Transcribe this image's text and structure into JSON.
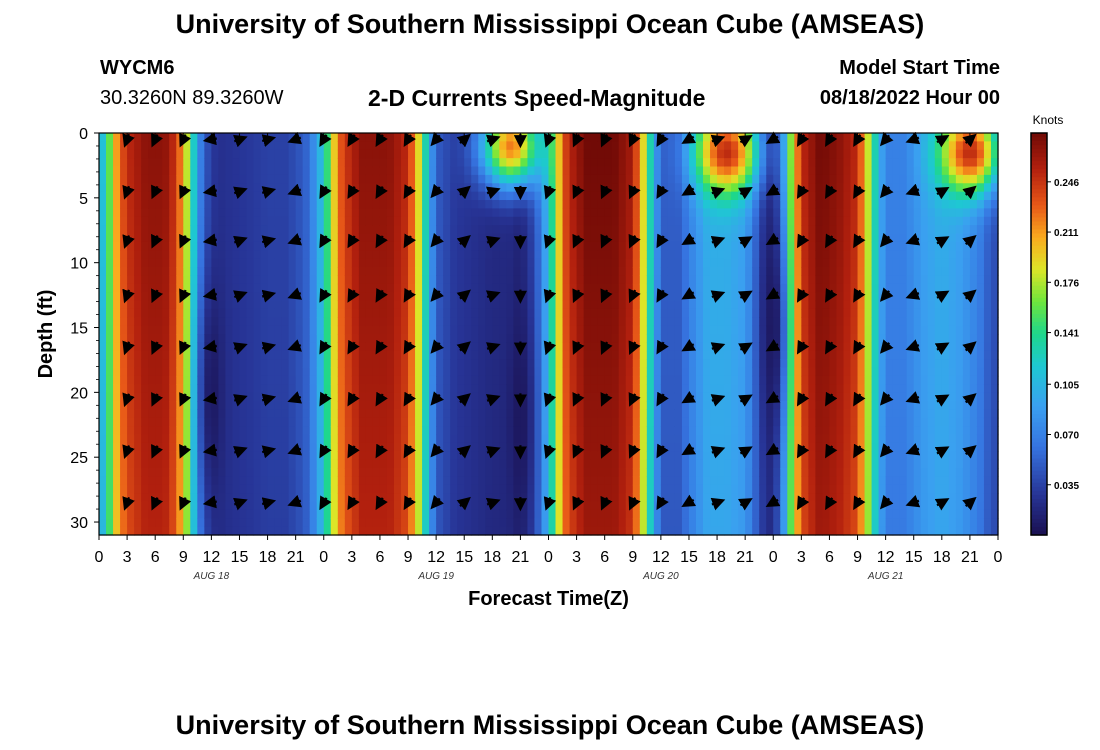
{
  "page": {
    "title": "University of Southern Mississippi Ocean Cube (AMSEAS)",
    "title_bottom": "University of Southern Mississippi Ocean Cube (AMSEAS)",
    "station_id": "WYCM6",
    "station_coords": "30.3260N  89.3260W",
    "subtitle": "2-D Currents Speed-Magnitude",
    "model_start_label": "Model Start Time",
    "model_start_value": "08/18/2022 Hour 00"
  },
  "chart_data": {
    "type": "heatmap",
    "title": "2-D Currents Speed-Magnitude",
    "xlabel": "Forecast Time(Z)",
    "ylabel": "Depth (ft)",
    "x_range_hours": [
      0,
      96
    ],
    "y_range_ft": [
      0,
      31
    ],
    "x_ticks": [
      {
        "h": 0,
        "label": "0"
      },
      {
        "h": 3,
        "label": "3"
      },
      {
        "h": 6,
        "label": "6"
      },
      {
        "h": 9,
        "label": "9"
      },
      {
        "h": 12,
        "label": "12"
      },
      {
        "h": 15,
        "label": "15"
      },
      {
        "h": 18,
        "label": "18"
      },
      {
        "h": 21,
        "label": "21"
      },
      {
        "h": 24,
        "label": "0"
      },
      {
        "h": 27,
        "label": "3"
      },
      {
        "h": 30,
        "label": "6"
      },
      {
        "h": 33,
        "label": "9"
      },
      {
        "h": 36,
        "label": "12"
      },
      {
        "h": 39,
        "label": "15"
      },
      {
        "h": 42,
        "label": "18"
      },
      {
        "h": 45,
        "label": "21"
      },
      {
        "h": 48,
        "label": "0"
      },
      {
        "h": 51,
        "label": "3"
      },
      {
        "h": 54,
        "label": "6"
      },
      {
        "h": 57,
        "label": "9"
      },
      {
        "h": 60,
        "label": "12"
      },
      {
        "h": 63,
        "label": "15"
      },
      {
        "h": 66,
        "label": "18"
      },
      {
        "h": 69,
        "label": "21"
      },
      {
        "h": 72,
        "label": "0"
      },
      {
        "h": 75,
        "label": "3"
      },
      {
        "h": 78,
        "label": "6"
      },
      {
        "h": 81,
        "label": "9"
      },
      {
        "h": 84,
        "label": "12"
      },
      {
        "h": 87,
        "label": "15"
      },
      {
        "h": 90,
        "label": "18"
      },
      {
        "h": 93,
        "label": "21"
      },
      {
        "h": 96,
        "label": "0"
      }
    ],
    "y_ticks": [
      {
        "ft": 0,
        "label": "0"
      },
      {
        "ft": 5,
        "label": "5"
      },
      {
        "ft": 10,
        "label": "10"
      },
      {
        "ft": 15,
        "label": "15"
      },
      {
        "ft": 20,
        "label": "20"
      },
      {
        "ft": 25,
        "label": "25"
      },
      {
        "ft": 30,
        "label": "30"
      }
    ],
    "date_labels": [
      {
        "h": 12,
        "label": "AUG 18"
      },
      {
        "h": 36,
        "label": "AUG 19"
      },
      {
        "h": 60,
        "label": "AUG 20"
      },
      {
        "h": 84,
        "label": "AUG 21"
      }
    ],
    "colorbar": {
      "unit": "Knots",
      "min": 0,
      "max": 0.28,
      "ticks": [
        0.246,
        0.211,
        0.176,
        0.141,
        0.105,
        0.07,
        0.035
      ],
      "tick_labels": [
        "0.246",
        "0.211",
        "0.176",
        "0.141",
        "0.105",
        "0.070",
        "0.035"
      ]
    },
    "speed_profile_by_hour": [
      [
        0,
        0.09
      ],
      [
        1,
        0.15
      ],
      [
        2,
        0.22
      ],
      [
        3,
        0.25
      ],
      [
        5,
        0.27
      ],
      [
        7,
        0.27
      ],
      [
        8,
        0.25
      ],
      [
        9,
        0.21
      ],
      [
        10,
        0.13
      ],
      [
        11,
        0.06
      ],
      [
        12,
        0.03
      ],
      [
        13,
        0.025
      ],
      [
        16,
        0.03
      ],
      [
        18,
        0.035
      ],
      [
        20,
        0.035
      ],
      [
        22,
        0.05
      ],
      [
        23,
        0.08
      ],
      [
        24,
        0.12
      ],
      [
        25,
        0.19
      ],
      [
        26,
        0.24
      ],
      [
        28,
        0.27
      ],
      [
        31,
        0.27
      ],
      [
        33,
        0.25
      ],
      [
        34,
        0.2
      ],
      [
        35,
        0.12
      ],
      [
        36,
        0.05
      ],
      [
        38,
        0.03
      ],
      [
        42,
        0.02
      ],
      [
        44,
        0.02
      ],
      [
        45,
        0.015
      ],
      [
        46,
        0.03
      ],
      [
        47,
        0.06
      ],
      [
        48,
        0.11
      ],
      [
        49,
        0.19
      ],
      [
        50,
        0.25
      ],
      [
        52,
        0.28
      ],
      [
        55,
        0.28
      ],
      [
        57,
        0.26
      ],
      [
        58,
        0.2
      ],
      [
        59,
        0.12
      ],
      [
        60,
        0.05
      ],
      [
        62,
        0.05
      ],
      [
        63,
        0.07
      ],
      [
        65,
        0.1
      ],
      [
        67,
        0.1
      ],
      [
        69,
        0.09
      ],
      [
        70,
        0.06
      ],
      [
        71,
        0.03
      ],
      [
        72,
        0.02
      ],
      [
        73,
        0.08
      ],
      [
        74,
        0.18
      ],
      [
        75,
        0.25
      ],
      [
        77,
        0.28
      ],
      [
        79,
        0.27
      ],
      [
        81,
        0.25
      ],
      [
        82,
        0.19
      ],
      [
        83,
        0.12
      ],
      [
        84,
        0.07
      ],
      [
        86,
        0.07
      ],
      [
        88,
        0.09
      ],
      [
        90,
        0.1
      ],
      [
        92,
        0.09
      ],
      [
        94,
        0.07
      ],
      [
        95,
        0.05
      ],
      [
        96,
        0.04
      ]
    ],
    "surface_hotspots": [
      {
        "h": 44,
        "depth_ft": 1,
        "speed": 0.22
      },
      {
        "h": 67,
        "depth_ft": 1.5,
        "speed": 0.25
      },
      {
        "h": 93,
        "depth_ft": 1.5,
        "speed": 0.25
      }
    ],
    "deep_minima": [
      {
        "h": 12,
        "depth_ft": 20,
        "speed": 0.005
      },
      {
        "h": 45,
        "depth_ft": 22,
        "speed": 0.005
      },
      {
        "h": 72,
        "depth_ft": 15,
        "speed": 0.005
      }
    ],
    "arrow_depths_ft": [
      0.5,
      4.5,
      8.3,
      12.5,
      16.5,
      20.5,
      24.5,
      28.5
    ],
    "arrow_hours": [
      3,
      6,
      9,
      12,
      15,
      18,
      21,
      24,
      27,
      30,
      33,
      36,
      39,
      42,
      45,
      48,
      51,
      54,
      57,
      60,
      63,
      66,
      69,
      72,
      75,
      78,
      81,
      84,
      87,
      90,
      93
    ],
    "arrow_direction_by_hour_deg": [
      [
        3,
        -110
      ],
      [
        6,
        -115
      ],
      [
        9,
        -115
      ],
      [
        12,
        -170
      ],
      [
        15,
        20
      ],
      [
        18,
        15
      ],
      [
        21,
        -160
      ],
      [
        24,
        -120
      ],
      [
        27,
        -120
      ],
      [
        30,
        -120
      ],
      [
        33,
        -120
      ],
      [
        36,
        -130
      ],
      [
        39,
        40
      ],
      [
        42,
        20
      ],
      [
        45,
        -90
      ],
      [
        48,
        -110
      ],
      [
        51,
        -115
      ],
      [
        54,
        -115
      ],
      [
        57,
        -115
      ],
      [
        60,
        -120
      ],
      [
        63,
        -150
      ],
      [
        66,
        20
      ],
      [
        69,
        30
      ],
      [
        72,
        -150
      ],
      [
        75,
        -120
      ],
      [
        78,
        -120
      ],
      [
        81,
        -120
      ],
      [
        84,
        -130
      ],
      [
        87,
        -160
      ],
      [
        90,
        30
      ],
      [
        93,
        40
      ]
    ]
  }
}
